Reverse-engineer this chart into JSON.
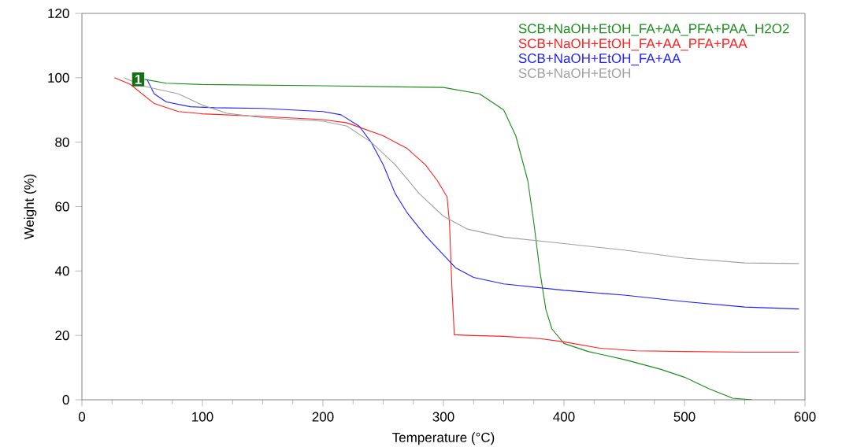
{
  "chart_data": {
    "type": "line",
    "xlabel": "Temperature (°C)",
    "ylabel": "Weight (%)",
    "xlim": [
      0,
      600
    ],
    "ylim": [
      0,
      120
    ],
    "xticks": [
      0,
      100,
      200,
      300,
      400,
      500,
      600
    ],
    "yticks": [
      0,
      20,
      40,
      60,
      80,
      100,
      120
    ],
    "grid": false,
    "legend": "top right",
    "marker": "none",
    "line_style": "solid",
    "annotations": [
      "1"
    ],
    "series": [
      {
        "name": "SCB+NaOH+EtOH_FA+AA_PFA+PAA_H2O2",
        "color": "#1a8c1a",
        "x": [
          52,
          70,
          100,
          200,
          300,
          330,
          350,
          360,
          370,
          375,
          380,
          385,
          390,
          400,
          420,
          450,
          480,
          500,
          520,
          540,
          556
        ],
        "values": [
          99.5,
          98.3,
          97.9,
          97.5,
          97,
          95,
          90,
          82,
          68,
          55,
          40,
          28,
          22,
          17.5,
          15,
          12.5,
          9.5,
          7,
          3.5,
          0.5,
          0
        ]
      },
      {
        "name": "SCB+NaOH+EtOH_FA+AA_PFA+PAA",
        "color": "#ff2020",
        "x": [
          27,
          40,
          60,
          80,
          100,
          150,
          200,
          220,
          250,
          270,
          285,
          295,
          303,
          305,
          307,
          309,
          320,
          350,
          380,
          400,
          430,
          460,
          500,
          550,
          595
        ],
        "values": [
          100,
          98,
          92,
          89.5,
          88.8,
          88,
          87,
          86,
          82,
          78,
          73,
          68,
          63,
          55,
          35,
          20.2,
          20,
          19.7,
          19,
          18,
          16,
          15.2,
          15,
          14.8,
          14.8
        ]
      },
      {
        "name": "SCB+NaOH+EtOH_FA+AA",
        "color": "#2020ff",
        "x": [
          54,
          60,
          70,
          90,
          110,
          150,
          200,
          215,
          230,
          240,
          250,
          260,
          270,
          285,
          300,
          310,
          325,
          350,
          400,
          450,
          500,
          550,
          595
        ],
        "values": [
          99.5,
          95,
          92.5,
          91,
          90.7,
          90.5,
          89.5,
          88.5,
          85,
          80,
          73,
          64,
          58,
          51,
          45,
          41,
          38,
          36,
          34,
          32.5,
          30.5,
          28.8,
          28.2
        ]
      },
      {
        "name": "SCB+NaOH+EtOH",
        "color": "#a0a0a0",
        "x": [
          35,
          50,
          80,
          100,
          120,
          150,
          200,
          220,
          240,
          260,
          280,
          300,
          320,
          350,
          400,
          450,
          500,
          550,
          595
        ],
        "values": [
          100,
          97.5,
          95,
          91.5,
          89,
          87.6,
          86.5,
          85,
          80,
          73,
          64,
          57,
          53,
          50.5,
          48.5,
          46.5,
          44,
          42.5,
          42.3
        ]
      }
    ]
  }
}
